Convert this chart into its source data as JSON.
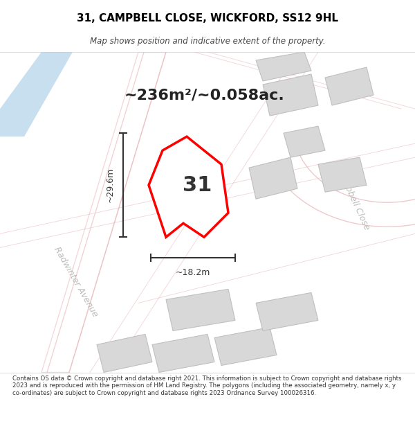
{
  "title": "31, CAMPBELL CLOSE, WICKFORD, SS12 9HL",
  "subtitle": "Map shows position and indicative extent of the property.",
  "area_label": "~236m²/~0.058ac.",
  "plot_number": "31",
  "width_label": "~18.2m",
  "height_label": "~29.6m",
  "background_color": "#f5f5f5",
  "map_background": "#f8f8f8",
  "footer_text": "Contains OS data © Crown copyright and database right 2021. This information is subject to Crown copyright and database rights 2023 and is reproduced with the permission of HM Land Registry. The polygons (including the associated geometry, namely x, y co-ordinates) are subject to Crown copyright and database rights 2023 Ordnance Survey 100026316.",
  "road_color": "#e8b4b8",
  "building_color": "#d4d4d4",
  "building_edge_color": "#c0c0c0",
  "plot_color": "#ff0000",
  "plot_fill": "white",
  "road_label_color": "#aaaaaa",
  "water_color": "#c8dff0",
  "dimension_color": "#333333"
}
